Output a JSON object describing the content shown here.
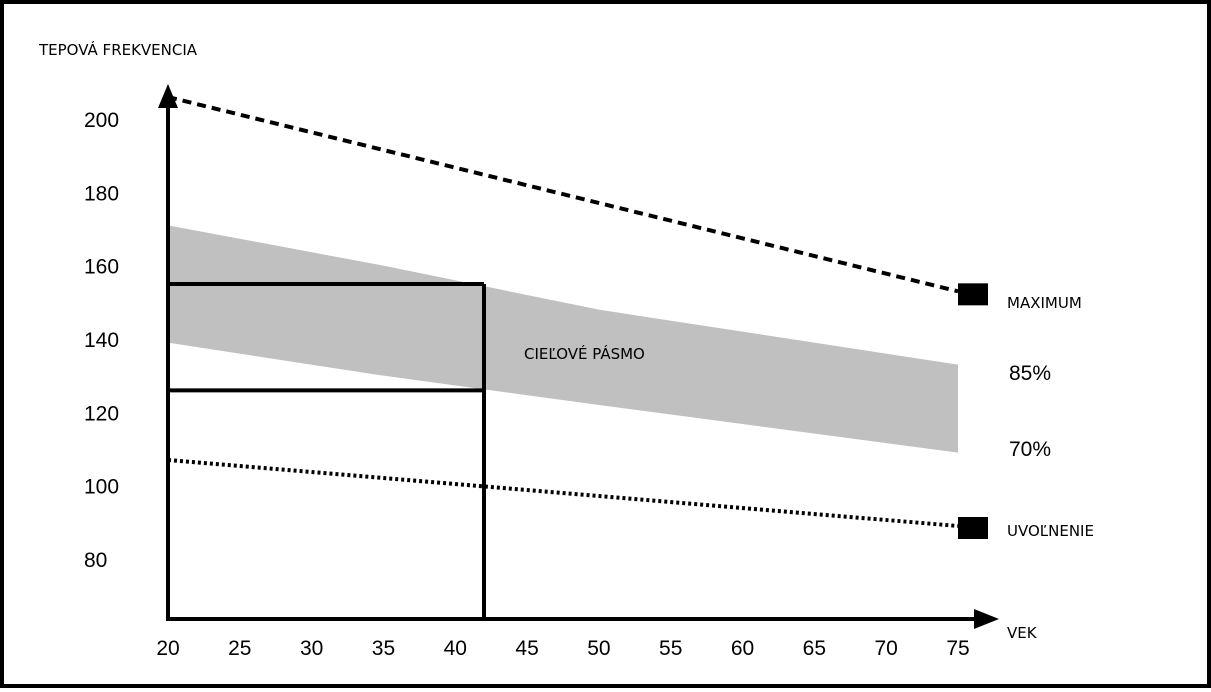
{
  "chart_data": {
    "type": "line",
    "ylabel": "TEPOVÁ FREKVENCIA",
    "xlabel": "VEK",
    "xlim": [
      20,
      75
    ],
    "ylim": [
      62,
      208
    ],
    "grid": false,
    "x_ticks": [
      20,
      25,
      30,
      35,
      40,
      45,
      50,
      55,
      60,
      65,
      70,
      75
    ],
    "y_ticks": [
      200,
      180,
      160,
      140,
      120,
      100,
      80
    ],
    "colors": {
      "band": "#c0c0c0",
      "lines": "#000000"
    },
    "series": [
      {
        "name": "MAXIMUM",
        "style": "dashed",
        "points": [
          [
            20,
            206
          ],
          [
            75,
            153
          ]
        ]
      },
      {
        "name": "UVOĽNENIE",
        "style": "dotted",
        "points": [
          [
            20,
            107
          ],
          [
            75,
            89
          ]
        ]
      }
    ],
    "band": {
      "label": "CIEĽOVÉ PÁSMO",
      "upper_label": "85%",
      "lower_label": "70%",
      "upper": [
        [
          20,
          171
        ],
        [
          35,
          160
        ],
        [
          50,
          148
        ],
        [
          75,
          133
        ]
      ],
      "lower": [
        [
          20,
          139
        ],
        [
          35,
          130
        ],
        [
          50,
          122
        ],
        [
          75,
          109
        ]
      ]
    },
    "highlight": {
      "age": 42,
      "upper": 155,
      "lower": 126
    }
  }
}
